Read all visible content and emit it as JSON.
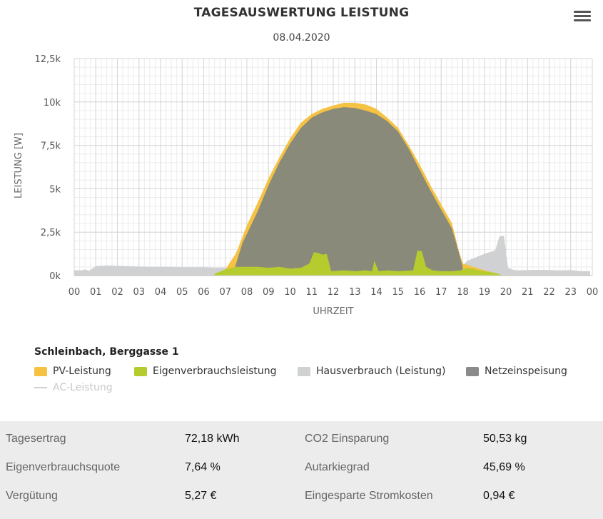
{
  "header": {
    "title": "TAGESAUSWERTUNG LEISTUNG",
    "date": "08.04.2020",
    "menu_icon": "hamburger-icon"
  },
  "chart_data": {
    "type": "area",
    "xlabel": "UHRZEIT",
    "ylabel": "LEISTUNG [W]",
    "xlim": [
      0,
      24
    ],
    "ylim": [
      0,
      12500
    ],
    "x_ticks": [
      "00",
      "01",
      "02",
      "03",
      "04",
      "05",
      "06",
      "07",
      "08",
      "09",
      "10",
      "11",
      "12",
      "13",
      "14",
      "15",
      "16",
      "17",
      "18",
      "19",
      "20",
      "21",
      "22",
      "23",
      "00"
    ],
    "y_ticks": [
      {
        "value": 0,
        "label": "0k"
      },
      {
        "value": 2500,
        "label": "2,5k"
      },
      {
        "value": 5000,
        "label": "5k"
      },
      {
        "value": 7500,
        "label": "7,5k"
      },
      {
        "value": 10000,
        "label": "10k"
      },
      {
        "value": 12500,
        "label": "12,5k"
      }
    ],
    "grid": true,
    "series": [
      {
        "name": "PV-Leistung",
        "color": "#f5c242",
        "x": [
          6.5,
          7.0,
          7.5,
          8.0,
          8.5,
          9.0,
          9.5,
          10.0,
          10.5,
          11.0,
          11.5,
          12.0,
          12.5,
          13.0,
          13.5,
          14.0,
          14.5,
          15.0,
          15.5,
          16.0,
          16.5,
          17.0,
          17.5,
          17.8,
          18.0,
          18.5,
          19.0,
          19.5,
          19.8
        ],
        "values": [
          100,
          350,
          1300,
          2900,
          4200,
          5600,
          6800,
          7900,
          8800,
          9300,
          9600,
          9800,
          9950,
          9950,
          9850,
          9600,
          9100,
          8500,
          7500,
          6400,
          5200,
          4100,
          3000,
          1500,
          700,
          500,
          300,
          150,
          30
        ]
      },
      {
        "name": "Netzeinspeisung",
        "color": "#8a8a7a",
        "x": [
          7.4,
          7.8,
          8.0,
          8.5,
          9.0,
          9.5,
          10.0,
          10.5,
          11.0,
          11.5,
          12.0,
          12.5,
          13.0,
          13.5,
          14.0,
          14.5,
          15.0,
          15.5,
          16.0,
          16.5,
          17.0,
          17.5,
          17.8,
          18.0
        ],
        "values": [
          300,
          1900,
          2400,
          3700,
          5200,
          6500,
          7600,
          8500,
          9100,
          9400,
          9600,
          9700,
          9650,
          9500,
          9300,
          8900,
          8300,
          7300,
          6100,
          4900,
          3800,
          2700,
          1400,
          500
        ]
      },
      {
        "name": "Eigenverbrauchsleistung",
        "color": "#b6cc2e",
        "x": [
          6.5,
          7.0,
          7.5,
          8.0,
          8.5,
          9.0,
          9.5,
          10.0,
          10.5,
          10.9,
          11.1,
          11.3,
          11.5,
          11.7,
          11.9,
          12.5,
          13.0,
          13.5,
          13.8,
          13.9,
          14.1,
          14.5,
          15.0,
          15.7,
          15.9,
          16.1,
          16.3,
          16.6,
          17.0,
          17.5,
          17.9,
          18.2,
          18.6,
          19.0,
          19.5,
          19.8
        ],
        "values": [
          100,
          350,
          500,
          500,
          500,
          450,
          500,
          400,
          450,
          700,
          1350,
          1300,
          1200,
          1250,
          250,
          300,
          250,
          300,
          250,
          850,
          250,
          300,
          250,
          300,
          1450,
          1400,
          500,
          300,
          250,
          250,
          300,
          450,
          350,
          250,
          150,
          30
        ]
      },
      {
        "name": "Hausverbrauch (Leistung)",
        "color": "#cfd1d2",
        "x": [
          0.0,
          0.3,
          0.5,
          0.7,
          1.0,
          1.5,
          2.0,
          2.5,
          3.0,
          3.5,
          4.0,
          4.5,
          5.0,
          5.5,
          6.0,
          6.5,
          7.0,
          7.5,
          17.9,
          18.2,
          18.5,
          19.0,
          19.5,
          19.7,
          19.9,
          20.1,
          20.3,
          20.5,
          21.0,
          21.5,
          22.0,
          22.5,
          23.0,
          23.5,
          23.9
        ],
        "values": [
          320,
          300,
          350,
          280,
          550,
          580,
          560,
          540,
          520,
          500,
          500,
          500,
          480,
          480,
          480,
          460,
          460,
          500,
          400,
          850,
          1000,
          1250,
          1450,
          2250,
          2300,
          450,
          350,
          300,
          320,
          330,
          320,
          300,
          320,
          250,
          250
        ]
      },
      {
        "name": "AC-Leistung",
        "color": "#d0d0d0",
        "x": [],
        "values": []
      }
    ]
  },
  "legend": {
    "title": "Schleinbach, Berggasse 1",
    "items": [
      {
        "label": "PV-Leistung",
        "color": "#f5c242"
      },
      {
        "label": "Eigenverbrauchsleistung",
        "color": "#b6cc2e"
      },
      {
        "label": "Hausverbrauch (Leistung)",
        "color": "#cfd1d2"
      },
      {
        "label": "Netzeinspeisung",
        "color": "#8a8a8a"
      },
      {
        "label": "AC-Leistung",
        "color": "#d0d0d0"
      }
    ]
  },
  "stats": [
    {
      "label": "Tagesertrag",
      "value": "72,18 kWh"
    },
    {
      "label": "CO2 Einsparung",
      "value": "50,53 kg"
    },
    {
      "label": "Eigenverbrauchsquote",
      "value": "7,64 %"
    },
    {
      "label": "Autarkiegrad",
      "value": "45,69 %"
    },
    {
      "label": "Vergütung",
      "value": "5,27 €"
    },
    {
      "label": "Eingesparte Stromkosten",
      "value": "0,94 €"
    }
  ]
}
